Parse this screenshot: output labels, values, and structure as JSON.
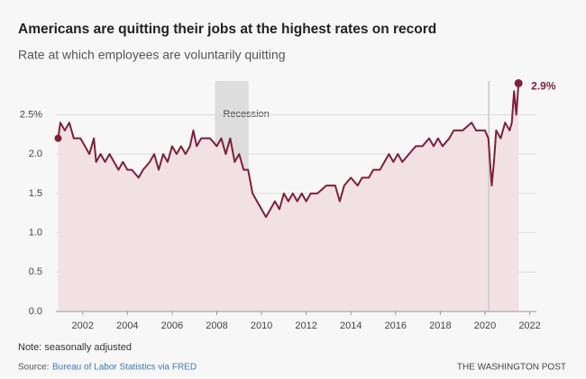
{
  "chart_data": {
    "type": "area",
    "title": "Americans are quitting their jobs at the highest rates on record",
    "subtitle": "Rate at which employees are voluntarily quitting",
    "x": [
      2000.9,
      2001.0,
      2001.2,
      2001.4,
      2001.6,
      2001.9,
      2002.1,
      2002.3,
      2002.5,
      2002.6,
      2002.8,
      2003.0,
      2003.2,
      2003.4,
      2003.6,
      2003.8,
      2004.0,
      2004.2,
      2004.5,
      2004.7,
      2005.0,
      2005.2,
      2005.4,
      2005.6,
      2005.8,
      2006.0,
      2006.2,
      2006.4,
      2006.6,
      2006.8,
      2006.95,
      2007.1,
      2007.3,
      2007.5,
      2007.7,
      2008.0,
      2008.2,
      2008.4,
      2008.6,
      2008.8,
      2009.0,
      2009.2,
      2009.4,
      2009.6,
      2009.8,
      2010.0,
      2010.2,
      2010.4,
      2010.6,
      2010.8,
      2011.0,
      2011.2,
      2011.4,
      2011.6,
      2011.8,
      2012.0,
      2012.2,
      2012.5,
      2012.9,
      2013.3,
      2013.5,
      2013.7,
      2014.0,
      2014.3,
      2014.5,
      2014.8,
      2015.0,
      2015.3,
      2015.5,
      2015.7,
      2015.9,
      2016.1,
      2016.3,
      2016.6,
      2016.9,
      2017.2,
      2017.5,
      2017.7,
      2017.9,
      2018.1,
      2018.4,
      2018.6,
      2019.0,
      2019.4,
      2019.6,
      2019.9,
      2020.0,
      2020.15,
      2020.3,
      2020.4,
      2020.5,
      2020.7,
      2020.9,
      2021.1,
      2021.2,
      2021.3,
      2021.4,
      2021.5
    ],
    "values": [
      2.2,
      2.4,
      2.3,
      2.4,
      2.2,
      2.2,
      2.1,
      2.0,
      2.2,
      1.9,
      2.0,
      1.9,
      2.0,
      1.9,
      1.8,
      1.9,
      1.8,
      1.8,
      1.7,
      1.8,
      1.9,
      2.0,
      1.8,
      2.0,
      1.9,
      2.1,
      2.0,
      2.1,
      2.0,
      2.1,
      2.3,
      2.1,
      2.2,
      2.2,
      2.2,
      2.1,
      2.2,
      2.0,
      2.2,
      1.9,
      2.0,
      1.8,
      1.8,
      1.5,
      1.4,
      1.3,
      1.2,
      1.3,
      1.4,
      1.3,
      1.5,
      1.4,
      1.5,
      1.4,
      1.5,
      1.4,
      1.5,
      1.5,
      1.6,
      1.6,
      1.4,
      1.6,
      1.7,
      1.6,
      1.7,
      1.7,
      1.8,
      1.8,
      1.9,
      2.0,
      1.9,
      2.0,
      1.9,
      2.0,
      2.1,
      2.1,
      2.2,
      2.1,
      2.2,
      2.1,
      2.2,
      2.3,
      2.3,
      2.4,
      2.3,
      2.3,
      2.3,
      2.2,
      1.6,
      1.9,
      2.3,
      2.2,
      2.4,
      2.3,
      2.4,
      2.8,
      2.5,
      2.9
    ],
    "end_label": "2.9%",
    "color": "#7e1f3d",
    "fill": "#f1e1e4",
    "xlim": [
      2000.8,
      2022.3
    ],
    "ylim": [
      0,
      3.1
    ],
    "xticks": [
      2002,
      2004,
      2006,
      2008,
      2010,
      2012,
      2014,
      2016,
      2018,
      2020,
      2022
    ],
    "yticks": [
      {
        "value": 0,
        "label": "0.0"
      },
      0.5,
      {
        "value": 1,
        "label": "1.0"
      },
      1.5,
      {
        "value": 2,
        "label": "2.0"
      },
      {
        "value": 2.5,
        "label": "2.5%"
      }
    ],
    "grid": true,
    "recession": {
      "label": "Recession",
      "start": 2007.92,
      "end": 2009.42
    },
    "vlines": [
      2020.17
    ],
    "note": "Note: seasonally adjusted",
    "source_prefix": "Source:",
    "source_link": "Bureau of Labor Statistics via FRED",
    "credit": "THE WASHINGTON POST"
  }
}
